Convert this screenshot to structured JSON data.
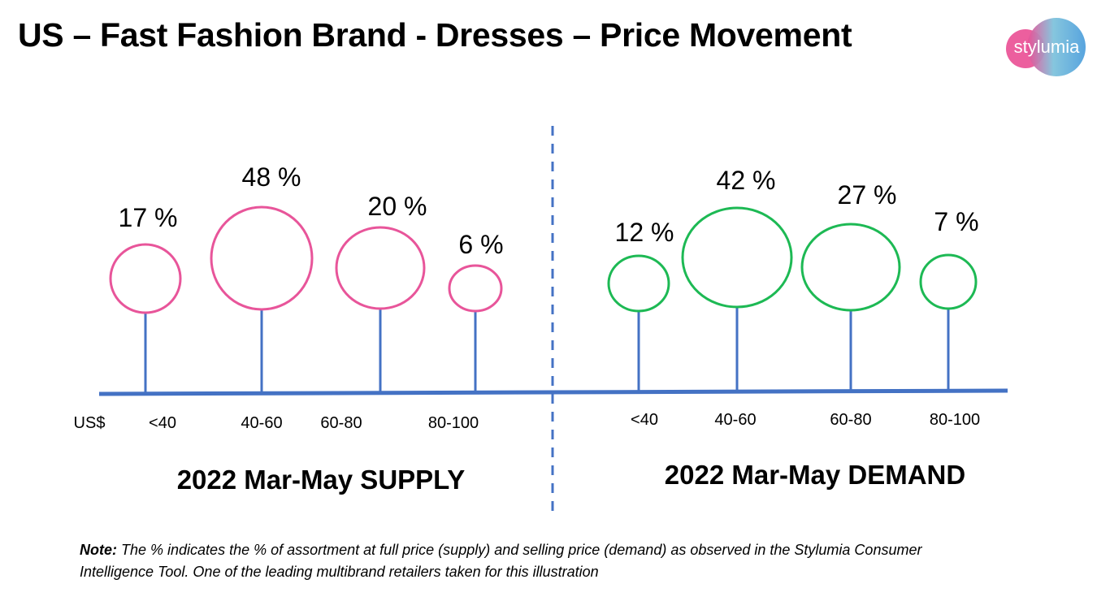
{
  "header": {
    "title": "US – Fast Fashion Brand - Dresses – Price Movement",
    "logo_text": "stylumia"
  },
  "chart_data": [
    {
      "type": "bubble",
      "title": "2022 Mar-May SUPPLY",
      "xlabel": "US$",
      "categories": [
        "<40",
        "40-60",
        "60-80",
        "80-100"
      ],
      "values": [
        17,
        48,
        20,
        6
      ],
      "value_labels": [
        "17 %",
        "48 %",
        "20 %",
        "6 %"
      ],
      "unit": "%",
      "color": "#e8559a"
    },
    {
      "type": "bubble",
      "title": "2022 Mar-May DEMAND",
      "xlabel": "",
      "categories": [
        "<40",
        "40-60",
        "60-80",
        "80-100"
      ],
      "values": [
        12,
        42,
        27,
        7
      ],
      "value_labels": [
        "12 %",
        "42 %",
        "27 %",
        "7 %"
      ],
      "unit": "%",
      "color": "#1db954"
    }
  ],
  "colors": {
    "axis": "#4472c4",
    "divider": "#4472c4"
  },
  "note": {
    "bold": "Note:",
    "text": " The % indicates the % of assortment at full price (supply) and selling price (demand) as observed in the Stylumia Consumer Intelligence Tool. One of the leading multibrand retailers taken for this illustration"
  }
}
